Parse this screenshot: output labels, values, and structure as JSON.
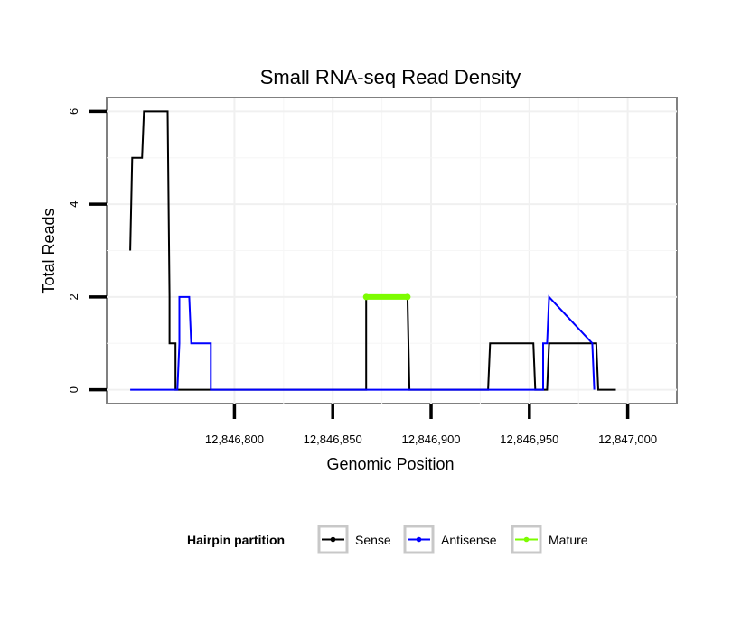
{
  "chart_data": {
    "type": "line",
    "title": "Small RNA-seq Read Density",
    "xlabel": "Genomic Position",
    "ylabel": "Total Reads",
    "xlim": [
      12846735,
      12847025
    ],
    "ylim": [
      -0.3,
      6.3
    ],
    "xticks": [
      12846800,
      12846850,
      12846900,
      12846950,
      12847000
    ],
    "xtick_labels": [
      "12,846,800",
      "12,846,850",
      "12,846,900",
      "12,846,950",
      "12,847,000"
    ],
    "yticks": [
      0,
      2,
      4,
      6
    ],
    "ytick_labels": [
      "0",
      "2",
      "4",
      "6"
    ],
    "grid": true,
    "legend": {
      "title": "Hairpin partition",
      "position": "bottom",
      "entries": [
        "Sense",
        "Antisense",
        "Mature"
      ]
    },
    "series": [
      {
        "name": "Sense",
        "color": "#000000",
        "x": [
          12846747,
          12846748,
          12846748,
          12846753,
          12846754,
          12846754,
          12846766,
          12846767,
          12846767,
          12846769,
          12846770,
          12846770,
          12846784,
          12846785,
          12846785,
          12846867,
          12846867,
          12846888,
          12846889,
          12846889,
          12846929,
          12846930,
          12846930,
          12846949,
          12846950,
          12846950,
          12846952,
          12846953,
          12846953,
          12846959,
          12846960,
          12846960,
          12846965,
          12846966,
          12846966,
          12846984,
          12846985,
          12846985,
          12846994
        ],
        "y": [
          3,
          5,
          5,
          5,
          6,
          6,
          6,
          2,
          1,
          1,
          1,
          0,
          0,
          0,
          0,
          0,
          2,
          2,
          0,
          0,
          0,
          1,
          1,
          1,
          1,
          1,
          1,
          0,
          0,
          0,
          1,
          1,
          1,
          1,
          1,
          1,
          0,
          0,
          0
        ]
      },
      {
        "name": "Antisense",
        "color": "#0000ff",
        "x": [
          12846747,
          12846771,
          12846772,
          12846772,
          12846777,
          12846778,
          12846778,
          12846788,
          12846788,
          12846797,
          12846957,
          12846957,
          12846959,
          12846960,
          12846960,
          12846982,
          12846983
        ],
        "y": [
          0,
          0,
          1,
          2,
          2,
          1,
          1,
          1,
          0,
          0,
          0,
          1,
          1,
          2,
          2,
          1,
          0
        ]
      },
      {
        "name": "Mature",
        "color": "#7cfc00",
        "x": [
          12846867,
          12846888
        ],
        "y": [
          2,
          2
        ]
      }
    ]
  }
}
